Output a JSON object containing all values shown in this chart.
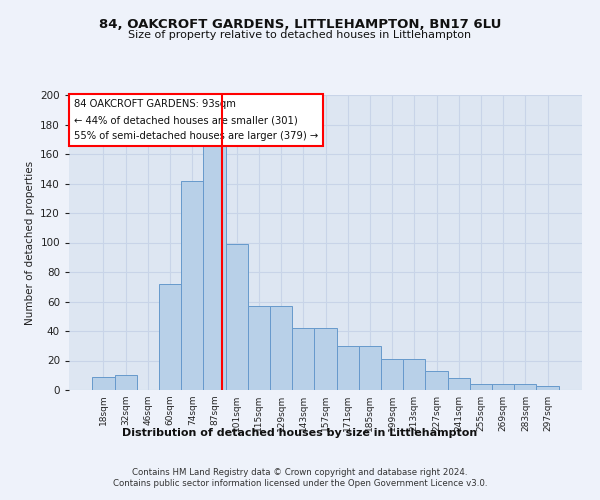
{
  "title1": "84, OAKCROFT GARDENS, LITTLEHAMPTON, BN17 6LU",
  "title2": "Size of property relative to detached houses in Littlehampton",
  "xlabel": "Distribution of detached houses by size in Littlehampton",
  "ylabel": "Number of detached properties",
  "categories": [
    "18sqm",
    "32sqm",
    "46sqm",
    "60sqm",
    "74sqm",
    "87sqm",
    "101sqm",
    "115sqm",
    "129sqm",
    "143sqm",
    "157sqm",
    "171sqm",
    "185sqm",
    "199sqm",
    "213sqm",
    "227sqm",
    "241sqm",
    "255sqm",
    "269sqm",
    "283sqm",
    "297sqm"
  ],
  "bar_values": [
    9,
    10,
    0,
    72,
    142,
    169,
    99,
    57,
    57,
    42,
    42,
    30,
    30,
    21,
    21,
    13,
    8,
    4,
    4,
    4,
    3
  ],
  "bar_color": "#b8d0e8",
  "bar_edge_color": "#6699cc",
  "vline_x": 93,
  "vline_color": "red",
  "annotation_text": "84 OAKCROFT GARDENS: 93sqm\n← 44% of detached houses are smaller (301)\n55% of semi-detached houses are larger (379) →",
  "annotation_box_color": "white",
  "annotation_box_edge": "red",
  "ylim": [
    0,
    200
  ],
  "yticks": [
    0,
    20,
    40,
    60,
    80,
    100,
    120,
    140,
    160,
    180,
    200
  ],
  "footer1": "Contains HM Land Registry data © Crown copyright and database right 2024.",
  "footer2": "Contains public sector information licensed under the Open Government Licence v3.0.",
  "bg_color": "#eef2fa",
  "plot_bg_color": "#dde6f2",
  "grid_color": "#c8d4e8"
}
